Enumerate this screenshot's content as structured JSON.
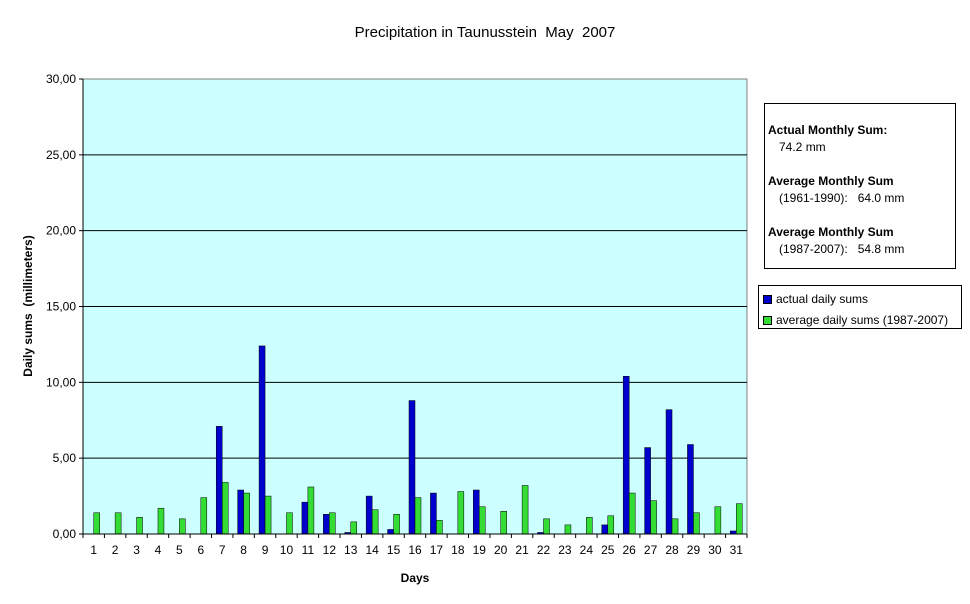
{
  "chart_data": {
    "type": "bar",
    "title": "Precipitation in Taunusstein  May  2007",
    "xlabel": "Days",
    "ylabel": "Daily sums  (millimeters)",
    "ylim": [
      0,
      30
    ],
    "ytick_labels": [
      "0,00",
      "5,00",
      "10,00",
      "15,00",
      "20,00",
      "25,00",
      "30,00"
    ],
    "grid": "horizontal",
    "legend_position": "right",
    "categories": [
      "1",
      "2",
      "3",
      "4",
      "5",
      "6",
      "7",
      "8",
      "9",
      "10",
      "11",
      "12",
      "13",
      "14",
      "15",
      "16",
      "17",
      "18",
      "19",
      "20",
      "21",
      "22",
      "23",
      "24",
      "25",
      "26",
      "27",
      "28",
      "29",
      "30",
      "31"
    ],
    "series": [
      {
        "name": "actual daily sums",
        "color": "#0000CC",
        "values": [
          0,
          0,
          0,
          0,
          0,
          0,
          7.1,
          2.9,
          12.4,
          0,
          2.1,
          1.3,
          0.1,
          2.5,
          0.3,
          8.8,
          2.7,
          0,
          2.9,
          0,
          0,
          0.1,
          0,
          0,
          0.6,
          10.4,
          5.7,
          8.2,
          5.9,
          0,
          0.2
        ]
      },
      {
        "name": "average daily sums (1987-2007)",
        "color": "#33DD33",
        "values": [
          1.4,
          1.4,
          1.1,
          1.7,
          1.0,
          2.4,
          3.4,
          2.7,
          2.5,
          1.4,
          3.1,
          1.4,
          0.8,
          1.6,
          1.3,
          2.4,
          0.9,
          2.8,
          1.8,
          1.5,
          3.2,
          1.0,
          0.6,
          1.1,
          1.2,
          2.7,
          2.2,
          1.0,
          1.4,
          1.8,
          2.0
        ]
      }
    ],
    "colors": {
      "plot_background": "#CCFFFF",
      "gridline": "#000000"
    }
  },
  "info": {
    "actual_heading": "Actual Monthly Sum:",
    "actual_value": "74.2 mm",
    "avg1_heading": "Average Monthly Sum",
    "avg1_value": "(1961-1990):   64.0 mm",
    "avg2_heading": "Average Monthly Sum",
    "avg2_value": "(1987-2007):   54.8 mm"
  }
}
